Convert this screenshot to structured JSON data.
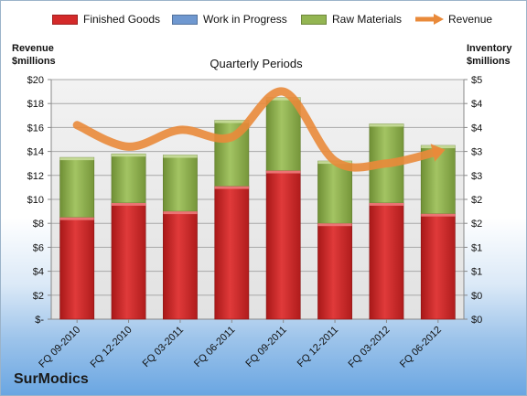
{
  "chart_data": {
    "type": "bar",
    "title": "Quarterly Periods",
    "brand": "SurModics",
    "categories": [
      "FQ 09-2010",
      "FQ 12-2010",
      "FQ 03-2011",
      "FQ 06-2011",
      "FQ 09-2011",
      "FQ 12-2011",
      "FQ 03-2012",
      "FQ 06-2012"
    ],
    "series": [
      {
        "name": "Finished Goods",
        "color": "#d42a2a",
        "axis": "left",
        "values": [
          8.5,
          9.7,
          9.0,
          11.1,
          12.4,
          8.0,
          9.7,
          8.8
        ]
      },
      {
        "name": "Work in Progress",
        "color": "#6f98d0",
        "axis": "left",
        "values": [
          0,
          0,
          0,
          0,
          0,
          0,
          0,
          0
        ]
      },
      {
        "name": "Raw Materials",
        "color": "#93b552",
        "axis": "left",
        "values": [
          5.0,
          4.1,
          4.7,
          5.5,
          6.1,
          5.2,
          6.6,
          5.7
        ]
      },
      {
        "name": "Revenue",
        "type": "line",
        "color": "#e98a3a",
        "axis": "right",
        "values": [
          4.05,
          3.6,
          3.95,
          3.8,
          4.75,
          3.3,
          3.25,
          3.5
        ]
      }
    ],
    "left_axis": {
      "label_line1": "Revenue",
      "label_line2": "$millions",
      "min": 0,
      "max": 20,
      "step": 2,
      "tick_labels": [
        "$-",
        "$2",
        "$4",
        "$6",
        "$8",
        "$10",
        "$12",
        "$14",
        "$16",
        "$18",
        "$20"
      ]
    },
    "right_axis": {
      "label_line1": "Inventory",
      "label_line2": "$millions",
      "min": 0,
      "max": 5,
      "step": 0.5,
      "tick_labels": [
        "$0",
        "$0",
        "$1",
        "$1",
        "$2",
        "$2",
        "$3",
        "$3",
        "$4",
        "$4",
        "$5"
      ]
    },
    "grid": true,
    "legend_position": "top"
  }
}
